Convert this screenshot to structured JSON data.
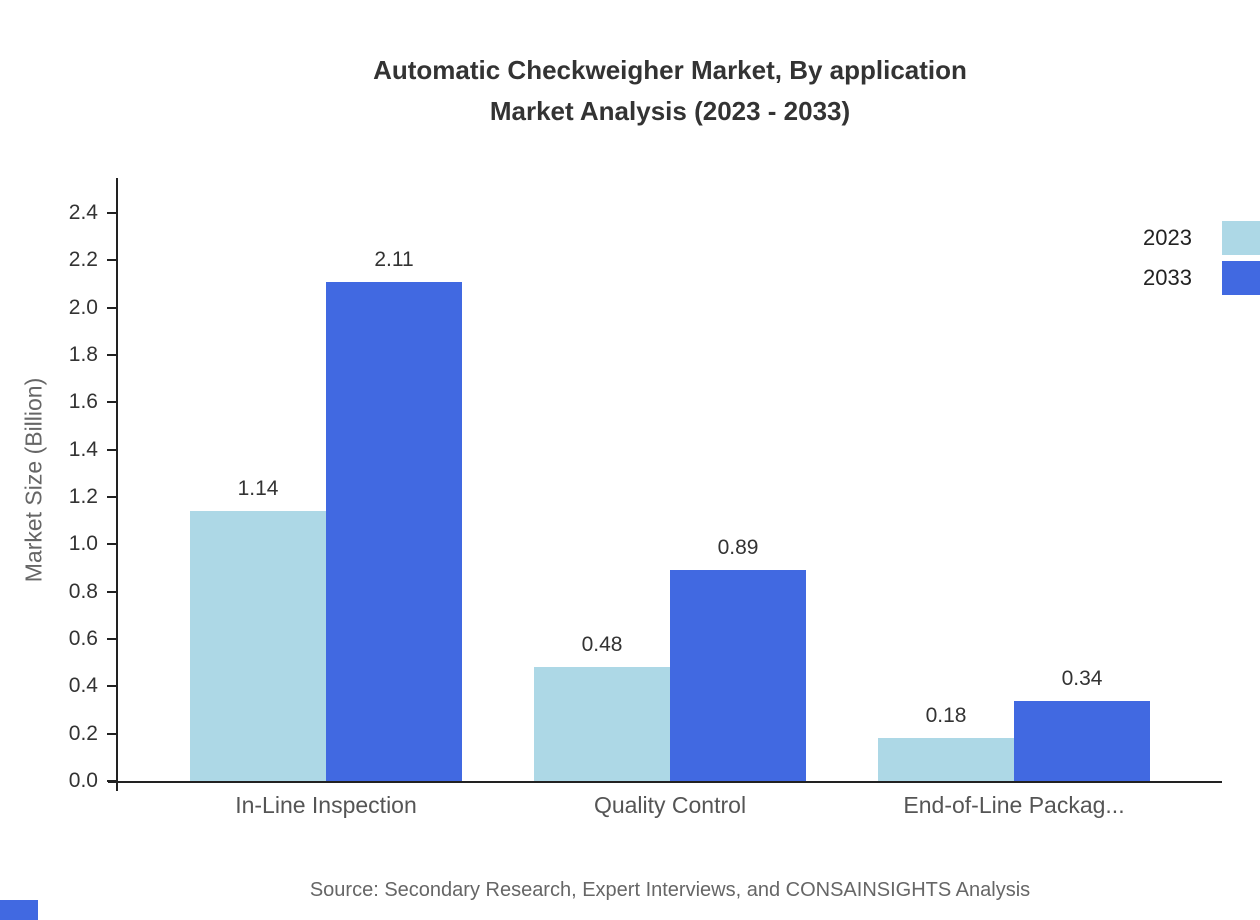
{
  "chart_data": {
    "type": "bar",
    "title": "Automatic Checkweigher Market, By application",
    "subtitle": "Market Analysis (2023 - 2033)",
    "ylabel": "Market Size (Billion)",
    "categories": [
      "In-Line Inspection",
      "Quality Control",
      "End-of-Line Packag..."
    ],
    "series": [
      {
        "name": "2023",
        "color": "#add8e6",
        "values": [
          1.14,
          0.48,
          0.18
        ]
      },
      {
        "name": "2033",
        "color": "#4169e1",
        "values": [
          2.11,
          0.89,
          0.34
        ]
      }
    ],
    "ylim": [
      0,
      2.54
    ],
    "yticks": [
      0.0,
      0.2,
      0.4,
      0.6,
      0.8,
      1.0,
      1.2,
      1.4,
      1.6,
      1.8,
      2.0,
      2.2,
      2.4
    ],
    "grid": false,
    "legend_position": "top-right",
    "source": "Source: Secondary Research, Expert Interviews, and CONSAINSIGHTS Analysis",
    "accent_color": "#4169e1"
  }
}
